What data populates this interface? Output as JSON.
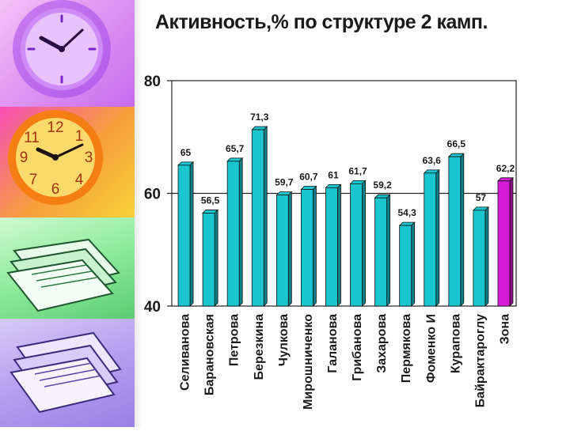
{
  "slide": {
    "title": "Активность,% по структуре 2 камп."
  },
  "colors": {
    "bar": "#19c6cf",
    "bar_dark": "#0d7f87",
    "highlight_bar": "#d51bd5",
    "highlight_dark": "#8a0e8a",
    "text": "#1a1a1a"
  },
  "decor": {
    "panels": [
      "clock-violet",
      "clock-orange",
      "papers-green",
      "papers-lavender"
    ]
  },
  "chart_data": {
    "type": "bar",
    "title": "Активность,% по структуре 2 камп.",
    "categories": [
      "Селиванова",
      "Барановская",
      "Петрова",
      "Березкина",
      "Чулкова",
      "Мирошниченко",
      "Галанова",
      "Грибанова",
      "Захарова",
      "Пермякова",
      "Фоменко И",
      "Курапова",
      "Байрактароглу",
      "Зона"
    ],
    "values": [
      65,
      56.5,
      65.7,
      71.3,
      59.7,
      60.7,
      61,
      61.7,
      59.2,
      54.3,
      63.6,
      66.5,
      57,
      62.2
    ],
    "value_labels": [
      "65",
      "56,5",
      "65,7",
      "71,3",
      "59,7",
      "60,7",
      "61",
      "61,7",
      "59,2",
      "54,3",
      "63,6",
      "66,5",
      "57",
      "62,2"
    ],
    "highlight_index": 13,
    "ylim": [
      40,
      80
    ],
    "yticks": [
      40,
      60,
      80
    ],
    "ytick_labels": [
      "40",
      "60",
      "80"
    ],
    "gridlines": [
      60
    ],
    "legend": "none"
  }
}
